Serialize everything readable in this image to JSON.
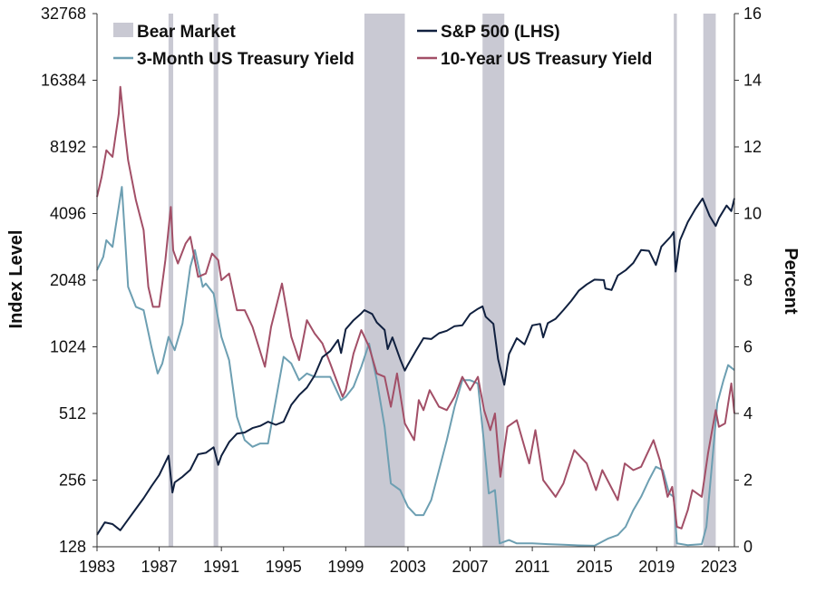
{
  "chart_data": {
    "type": "line",
    "title": "",
    "xlabel": "",
    "ylabel_left": "Index Level",
    "ylabel_right": "Percent",
    "x_ticks": [
      "1983",
      "1987",
      "1991",
      "1995",
      "1999",
      "2003",
      "2007",
      "2011",
      "2015",
      "2019",
      "2023"
    ],
    "xlim": [
      1983.0,
      2024.0
    ],
    "y_left": {
      "scale": "log2",
      "ylim": [
        128,
        32768
      ],
      "ticks": [
        128,
        256,
        512,
        1024,
        2048,
        4096,
        8192,
        16384,
        32768
      ]
    },
    "y_right": {
      "scale": "linear",
      "ylim": [
        0,
        16
      ],
      "ticks": [
        0,
        2,
        4,
        6,
        8,
        10,
        12,
        14,
        16
      ]
    },
    "grid": false,
    "legend_position": "top",
    "legend": [
      {
        "key": "bear",
        "label": "Bear Market"
      },
      {
        "key": "spx",
        "label": "S&P 500 (LHS)"
      },
      {
        "key": "t3m",
        "label": "3-Month US Treasury Yield"
      },
      {
        "key": "t10y",
        "label": "10-Year US Treasury Yield"
      }
    ],
    "colors": {
      "bear": "#c9c9d3",
      "spx": "#10203f",
      "t3m": "#6d9fb2",
      "t10y": "#a24f67",
      "axis": "#333333"
    },
    "bear_markets": [
      [
        1987.6,
        1987.9
      ],
      [
        1990.5,
        1990.8
      ],
      [
        2000.2,
        2002.8
      ],
      [
        2007.8,
        2009.2
      ],
      [
        2020.1,
        2020.3
      ],
      [
        2022.0,
        2022.8
      ]
    ],
    "series": [
      {
        "key": "spx",
        "name": "S&P 500 (LHS)",
        "axis": "left",
        "points": [
          [
            1983.0,
            145
          ],
          [
            1983.5,
            165
          ],
          [
            1984.0,
            162
          ],
          [
            1984.5,
            152
          ],
          [
            1985.0,
            170
          ],
          [
            1985.5,
            190
          ],
          [
            1986.0,
            212
          ],
          [
            1986.5,
            240
          ],
          [
            1987.0,
            270
          ],
          [
            1987.6,
            330
          ],
          [
            1987.85,
            225
          ],
          [
            1988.0,
            250
          ],
          [
            1988.5,
            265
          ],
          [
            1989.0,
            285
          ],
          [
            1989.5,
            335
          ],
          [
            1990.0,
            340
          ],
          [
            1990.5,
            360
          ],
          [
            1990.8,
            300
          ],
          [
            1991.0,
            330
          ],
          [
            1991.5,
            380
          ],
          [
            1992.0,
            415
          ],
          [
            1992.5,
            420
          ],
          [
            1993.0,
            440
          ],
          [
            1993.5,
            450
          ],
          [
            1994.0,
            470
          ],
          [
            1994.5,
            455
          ],
          [
            1995.0,
            470
          ],
          [
            1995.5,
            560
          ],
          [
            1996.0,
            620
          ],
          [
            1996.5,
            670
          ],
          [
            1997.0,
            760
          ],
          [
            1997.5,
            920
          ],
          [
            1998.0,
            980
          ],
          [
            1998.5,
            1100
          ],
          [
            1998.7,
            960
          ],
          [
            1999.0,
            1230
          ],
          [
            1999.5,
            1350
          ],
          [
            2000.0,
            1450
          ],
          [
            2000.2,
            1500
          ],
          [
            2000.7,
            1440
          ],
          [
            2001.0,
            1320
          ],
          [
            2001.5,
            1220
          ],
          [
            2001.7,
            1000
          ],
          [
            2002.0,
            1130
          ],
          [
            2002.5,
            900
          ],
          [
            2002.8,
            800
          ],
          [
            2003.0,
            850
          ],
          [
            2003.5,
            980
          ],
          [
            2004.0,
            1120
          ],
          [
            2004.5,
            1110
          ],
          [
            2005.0,
            1180
          ],
          [
            2005.5,
            1210
          ],
          [
            2006.0,
            1270
          ],
          [
            2006.5,
            1280
          ],
          [
            2007.0,
            1440
          ],
          [
            2007.5,
            1520
          ],
          [
            2007.8,
            1560
          ],
          [
            2008.0,
            1400
          ],
          [
            2008.5,
            1300
          ],
          [
            2008.8,
            900
          ],
          [
            2009.2,
            690
          ],
          [
            2009.5,
            950
          ],
          [
            2010.0,
            1120
          ],
          [
            2010.5,
            1050
          ],
          [
            2011.0,
            1280
          ],
          [
            2011.5,
            1300
          ],
          [
            2011.7,
            1130
          ],
          [
            2012.0,
            1310
          ],
          [
            2012.5,
            1370
          ],
          [
            2013.0,
            1500
          ],
          [
            2013.5,
            1650
          ],
          [
            2014.0,
            1840
          ],
          [
            2014.5,
            1960
          ],
          [
            2015.0,
            2060
          ],
          [
            2015.6,
            2050
          ],
          [
            2015.7,
            1880
          ],
          [
            2016.1,
            1850
          ],
          [
            2016.5,
            2150
          ],
          [
            2017.0,
            2270
          ],
          [
            2017.5,
            2450
          ],
          [
            2018.0,
            2800
          ],
          [
            2018.5,
            2780
          ],
          [
            2018.95,
            2400
          ],
          [
            2019.3,
            2900
          ],
          [
            2019.9,
            3220
          ],
          [
            2020.1,
            3380
          ],
          [
            2020.22,
            2240
          ],
          [
            2020.5,
            3100
          ],
          [
            2021.0,
            3750
          ],
          [
            2021.5,
            4300
          ],
          [
            2021.95,
            4790
          ],
          [
            2022.4,
            4000
          ],
          [
            2022.8,
            3600
          ],
          [
            2023.0,
            3900
          ],
          [
            2023.5,
            4450
          ],
          [
            2023.8,
            4200
          ],
          [
            2024.0,
            4800
          ]
        ]
      },
      {
        "key": "t3m",
        "name": "3-Month US Treasury Yield",
        "axis": "right",
        "points": [
          [
            1983.0,
            8.3
          ],
          [
            1983.4,
            8.7
          ],
          [
            1983.6,
            9.2
          ],
          [
            1984.0,
            9.0
          ],
          [
            1984.6,
            10.8
          ],
          [
            1984.8,
            9.3
          ],
          [
            1985.0,
            7.8
          ],
          [
            1985.5,
            7.2
          ],
          [
            1986.0,
            7.1
          ],
          [
            1986.5,
            6.0
          ],
          [
            1986.9,
            5.2
          ],
          [
            1987.2,
            5.5
          ],
          [
            1987.6,
            6.3
          ],
          [
            1988.0,
            5.9
          ],
          [
            1988.5,
            6.7
          ],
          [
            1989.0,
            8.4
          ],
          [
            1989.3,
            8.9
          ],
          [
            1989.8,
            7.8
          ],
          [
            1990.0,
            7.9
          ],
          [
            1990.5,
            7.6
          ],
          [
            1991.0,
            6.3
          ],
          [
            1991.5,
            5.6
          ],
          [
            1992.0,
            3.9
          ],
          [
            1992.5,
            3.2
          ],
          [
            1993.0,
            3.0
          ],
          [
            1993.5,
            3.1
          ],
          [
            1994.0,
            3.1
          ],
          [
            1994.5,
            4.4
          ],
          [
            1995.0,
            5.7
          ],
          [
            1995.5,
            5.5
          ],
          [
            1996.0,
            5.0
          ],
          [
            1996.5,
            5.2
          ],
          [
            1997.0,
            5.1
          ],
          [
            1997.5,
            5.1
          ],
          [
            1998.0,
            5.1
          ],
          [
            1998.7,
            4.4
          ],
          [
            1999.0,
            4.5
          ],
          [
            1999.5,
            4.8
          ],
          [
            2000.0,
            5.4
          ],
          [
            2000.5,
            6.1
          ],
          [
            2001.0,
            5.0
          ],
          [
            2001.5,
            3.6
          ],
          [
            2001.9,
            1.9
          ],
          [
            2002.5,
            1.7
          ],
          [
            2003.0,
            1.2
          ],
          [
            2003.5,
            0.95
          ],
          [
            2004.0,
            0.95
          ],
          [
            2004.5,
            1.4
          ],
          [
            2005.0,
            2.3
          ],
          [
            2005.5,
            3.2
          ],
          [
            2006.0,
            4.2
          ],
          [
            2006.5,
            5.0
          ],
          [
            2007.0,
            5.0
          ],
          [
            2007.5,
            4.9
          ],
          [
            2007.9,
            3.1
          ],
          [
            2008.2,
            1.6
          ],
          [
            2008.6,
            1.7
          ],
          [
            2008.9,
            0.1
          ],
          [
            2009.5,
            0.2
          ],
          [
            2010.0,
            0.1
          ],
          [
            2011.0,
            0.1
          ],
          [
            2012.0,
            0.08
          ],
          [
            2013.0,
            0.06
          ],
          [
            2014.0,
            0.04
          ],
          [
            2015.0,
            0.03
          ],
          [
            2015.9,
            0.25
          ],
          [
            2016.5,
            0.35
          ],
          [
            2017.0,
            0.6
          ],
          [
            2017.5,
            1.1
          ],
          [
            2018.0,
            1.5
          ],
          [
            2018.5,
            2.0
          ],
          [
            2018.95,
            2.4
          ],
          [
            2019.4,
            2.3
          ],
          [
            2019.8,
            1.6
          ],
          [
            2020.1,
            1.5
          ],
          [
            2020.3,
            0.1
          ],
          [
            2021.0,
            0.05
          ],
          [
            2021.9,
            0.08
          ],
          [
            2022.2,
            0.6
          ],
          [
            2022.6,
            2.7
          ],
          [
            2022.9,
            4.3
          ],
          [
            2023.3,
            5.0
          ],
          [
            2023.6,
            5.45
          ],
          [
            2024.0,
            5.3
          ]
        ]
      },
      {
        "key": "t10y",
        "name": "10-Year US Treasury Yield",
        "axis": "right",
        "points": [
          [
            1983.0,
            10.5
          ],
          [
            1983.3,
            11.1
          ],
          [
            1983.6,
            11.9
          ],
          [
            1984.0,
            11.7
          ],
          [
            1984.4,
            13.0
          ],
          [
            1984.5,
            13.8
          ],
          [
            1984.8,
            12.4
          ],
          [
            1985.0,
            11.6
          ],
          [
            1985.5,
            10.4
          ],
          [
            1986.0,
            9.5
          ],
          [
            1986.3,
            7.8
          ],
          [
            1986.6,
            7.2
          ],
          [
            1987.0,
            7.2
          ],
          [
            1987.4,
            8.6
          ],
          [
            1987.75,
            10.2
          ],
          [
            1987.9,
            8.9
          ],
          [
            1988.2,
            8.5
          ],
          [
            1988.7,
            9.1
          ],
          [
            1989.0,
            9.3
          ],
          [
            1989.5,
            8.1
          ],
          [
            1990.0,
            8.2
          ],
          [
            1990.4,
            8.8
          ],
          [
            1990.8,
            8.6
          ],
          [
            1991.0,
            8.0
          ],
          [
            1991.5,
            8.2
          ],
          [
            1992.0,
            7.1
          ],
          [
            1992.5,
            7.1
          ],
          [
            1993.0,
            6.6
          ],
          [
            1993.8,
            5.4
          ],
          [
            1994.2,
            6.6
          ],
          [
            1994.9,
            7.9
          ],
          [
            1995.5,
            6.3
          ],
          [
            1996.0,
            5.6
          ],
          [
            1996.5,
            6.8
          ],
          [
            1997.0,
            6.4
          ],
          [
            1997.5,
            6.1
          ],
          [
            1998.0,
            5.5
          ],
          [
            1998.8,
            4.5
          ],
          [
            1999.0,
            4.7
          ],
          [
            1999.5,
            5.8
          ],
          [
            2000.0,
            6.5
          ],
          [
            2000.5,
            6.0
          ],
          [
            2001.0,
            5.2
          ],
          [
            2001.5,
            5.1
          ],
          [
            2001.9,
            4.2
          ],
          [
            2002.3,
            5.2
          ],
          [
            2002.8,
            3.7
          ],
          [
            2003.4,
            3.2
          ],
          [
            2003.7,
            4.4
          ],
          [
            2004.0,
            4.1
          ],
          [
            2004.4,
            4.7
          ],
          [
            2005.0,
            4.2
          ],
          [
            2005.5,
            4.1
          ],
          [
            2006.0,
            4.5
          ],
          [
            2006.5,
            5.1
          ],
          [
            2007.0,
            4.7
          ],
          [
            2007.5,
            5.1
          ],
          [
            2007.9,
            4.1
          ],
          [
            2008.3,
            3.5
          ],
          [
            2008.6,
            4.0
          ],
          [
            2008.95,
            2.1
          ],
          [
            2009.4,
            3.6
          ],
          [
            2010.0,
            3.8
          ],
          [
            2010.8,
            2.5
          ],
          [
            2011.2,
            3.5
          ],
          [
            2011.7,
            2.0
          ],
          [
            2012.5,
            1.5
          ],
          [
            2013.0,
            1.9
          ],
          [
            2013.7,
            2.9
          ],
          [
            2014.5,
            2.5
          ],
          [
            2015.1,
            1.7
          ],
          [
            2015.5,
            2.3
          ],
          [
            2016.5,
            1.4
          ],
          [
            2016.95,
            2.5
          ],
          [
            2017.5,
            2.3
          ],
          [
            2018.0,
            2.4
          ],
          [
            2018.8,
            3.2
          ],
          [
            2019.2,
            2.6
          ],
          [
            2019.7,
            1.5
          ],
          [
            2020.0,
            1.8
          ],
          [
            2020.3,
            0.6
          ],
          [
            2020.6,
            0.55
          ],
          [
            2021.0,
            1.1
          ],
          [
            2021.3,
            1.7
          ],
          [
            2021.9,
            1.5
          ],
          [
            2022.3,
            2.8
          ],
          [
            2022.8,
            4.1
          ],
          [
            2023.0,
            3.6
          ],
          [
            2023.4,
            3.7
          ],
          [
            2023.8,
            4.9
          ],
          [
            2024.0,
            4.0
          ]
        ]
      }
    ]
  }
}
